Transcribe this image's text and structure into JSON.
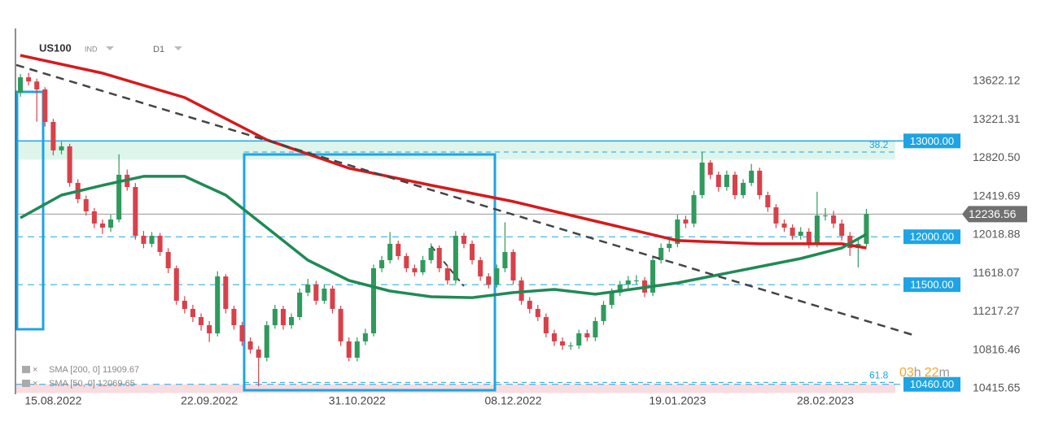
{
  "header": {
    "symbol": "US100",
    "market": "IND",
    "timeframe": "D1"
  },
  "chart_data": {
    "type": "candlestick",
    "open": [
      13500,
      13664,
      13620,
      13537,
      13198,
      12901,
      12943,
      12562,
      12392,
      12265,
      12138,
      12095,
      12180,
      12647,
      12519,
      12010,
      11926,
      12010,
      11841,
      11671,
      11332,
      11247,
      11162,
      11077,
      10992,
      11586,
      11247,
      11077,
      10908,
      10823,
      10738,
      11077,
      11247,
      11077,
      11162,
      11417,
      11501,
      11332,
      11459,
      11247,
      10908,
      10738,
      10908,
      10992,
      11671,
      11756,
      11926,
      11798,
      11671,
      11629,
      11756,
      11883,
      11671,
      11544,
      12010,
      11926,
      11756,
      11586,
      11501,
      11671,
      11841,
      11544,
      11332,
      11247,
      11162,
      10992,
      10908,
      10865,
      10865,
      10992,
      10950,
      11120,
      11289,
      11417,
      11501,
      11544,
      11544,
      11417,
      11756,
      11883,
      11926,
      12180,
      12138,
      12434,
      12774,
      12647,
      12519,
      12647,
      12434,
      12562,
      12689,
      12434,
      12307,
      12138,
      12095,
      12010,
      12053,
      11926,
      12222,
      12222,
      12138,
      12010,
      11883,
      11926
    ],
    "high": [
      13700,
      13710,
      13650,
      13560,
      13230,
      12990,
      12970,
      12600,
      12430,
      12300,
      12180,
      12230,
      12860,
      12700,
      12560,
      12060,
      12050,
      12040,
      11880,
      11700,
      11380,
      11290,
      11200,
      11120,
      11640,
      11610,
      11280,
      11110,
      10950,
      10860,
      11120,
      11290,
      11280,
      11200,
      11460,
      11560,
      11540,
      11500,
      11490,
      11280,
      10950,
      10950,
      11040,
      11710,
      11800,
      12050,
      11960,
      11830,
      11710,
      11800,
      11930,
      11910,
      11700,
      12060,
      12040,
      11960,
      11790,
      11620,
      11710,
      12150,
      11870,
      11580,
      11370,
      11290,
      11200,
      11030,
      10950,
      10900,
      11030,
      11030,
      11160,
      11330,
      11460,
      11540,
      11590,
      11600,
      11580,
      11800,
      11930,
      11970,
      12230,
      12220,
      12480,
      12880,
      12800,
      12680,
      12690,
      12680,
      12600,
      12760,
      12720,
      12470,
      12340,
      12180,
      12130,
      12100,
      12090,
      12470,
      12300,
      12270,
      12180,
      12050,
      11970,
      12290
    ],
    "low": [
      13460,
      13580,
      13200,
      13150,
      12850,
      12860,
      12520,
      12350,
      12220,
      12090,
      12030,
      12050,
      12150,
      12480,
      11970,
      11880,
      11890,
      11800,
      11620,
      11290,
      11200,
      11110,
      11020,
      10900,
      10960,
      11200,
      11030,
      10860,
      10780,
      10440,
      10700,
      11040,
      11030,
      11040,
      11130,
      11380,
      11290,
      11300,
      11200,
      10860,
      10700,
      10700,
      10870,
      10960,
      11630,
      11720,
      11760,
      11630,
      11590,
      11600,
      11720,
      11630,
      11500,
      11510,
      11880,
      11710,
      11540,
      11460,
      11470,
      11630,
      11500,
      11290,
      11200,
      11120,
      10950,
      10860,
      10820,
      10820,
      10830,
      10910,
      10910,
      11080,
      11250,
      11380,
      11460,
      11500,
      11370,
      11380,
      11720,
      11840,
      11890,
      12090,
      12100,
      12400,
      12600,
      12470,
      12480,
      12390,
      12400,
      12530,
      12390,
      12260,
      12090,
      12050,
      11970,
      11970,
      11880,
      11890,
      12170,
      12090,
      11960,
      11800,
      11680,
      11900
    ],
    "close": [
      13664,
      13620,
      13537,
      13198,
      12901,
      12943,
      12562,
      12392,
      12265,
      12138,
      12095,
      12180,
      12647,
      12519,
      12010,
      11926,
      12010,
      11841,
      11671,
      11332,
      11247,
      11162,
      11077,
      10992,
      11586,
      11247,
      11077,
      10908,
      10823,
      10738,
      11077,
      11247,
      11077,
      11162,
      11417,
      11501,
      11332,
      11459,
      11247,
      10908,
      10738,
      10908,
      10992,
      11671,
      11756,
      11926,
      11798,
      11671,
      11629,
      11756,
      11883,
      11671,
      11544,
      12010,
      11926,
      11756,
      11586,
      11501,
      11671,
      11841,
      11544,
      11332,
      11247,
      11162,
      10992,
      10908,
      10865,
      10865,
      10992,
      10950,
      11120,
      11289,
      11417,
      11501,
      11544,
      11544,
      11417,
      11756,
      11883,
      11926,
      12180,
      12138,
      12434,
      12774,
      12647,
      12519,
      12647,
      12434,
      12562,
      12689,
      12434,
      12307,
      12138,
      12095,
      12010,
      12053,
      11926,
      12222,
      12222,
      12138,
      12010,
      11883,
      11926,
      12237
    ],
    "up_color": "#2f9a5c",
    "down_color": "#d8414a",
    "xlim": [
      -0.5,
      109
    ],
    "ylim": [
      10339,
      14131
    ],
    "xticks": [
      {
        "value": 4,
        "label": "15.08.2022"
      },
      {
        "value": 23,
        "label": "22.09.2022"
      },
      {
        "value": 41,
        "label": "31.10.2022"
      },
      {
        "value": 60,
        "label": "08.12.2022"
      },
      {
        "value": 80,
        "label": "19.01.2023"
      },
      {
        "value": 98,
        "label": "28.02.2023"
      }
    ],
    "yticks": [
      13622.12,
      13221.31,
      {
        "value": 12820.5,
        "label": "12820.50"
      },
      12419.69,
      12018.88,
      11618.07,
      11217.27,
      10816.46,
      10415.65
    ],
    "indicators": [
      {
        "name": "SMA [200, 0] 11909.67",
        "color": "#d7191c",
        "x": [
          0,
          10,
          20,
          30,
          40,
          50,
          60,
          70,
          80,
          90,
          100,
          103
        ],
        "values": [
          13893,
          13707,
          13452,
          13011,
          12715,
          12537,
          12367,
          12163,
          11960,
          11926,
          11926,
          11883
        ]
      },
      {
        "name": "SMA [50, 0] 12069.65",
        "color": "#1f8a55",
        "x": [
          0,
          5,
          10,
          15,
          20,
          25,
          30,
          35,
          40,
          45,
          50,
          55,
          60,
          65,
          70,
          75,
          80,
          85,
          90,
          95,
          100,
          103
        ],
        "values": [
          12197,
          12434,
          12537,
          12630,
          12630,
          12434,
          12095,
          11756,
          11544,
          11433,
          11374,
          11365,
          11417,
          11450,
          11400,
          11459,
          11518,
          11603,
          11688,
          11773,
          11883,
          12027
        ]
      }
    ],
    "trendline": {
      "x": [
        -0.5,
        109
      ],
      "values": [
        13792,
        10967
      ],
      "color": "#444444"
    },
    "levels": [
      {
        "value": 13000,
        "label": "13000.00",
        "style": "solid"
      },
      {
        "value": 12000,
        "label": "12000.00",
        "style": "dashed"
      },
      {
        "value": 11500,
        "label": "11500.00",
        "style": "dashed"
      },
      {
        "value": 10460,
        "label": "10460.00",
        "style": "dashed"
      }
    ],
    "level_color": "#1ea4e4",
    "zones": [
      {
        "from": 12805,
        "to": 13000,
        "color": "#d6f2e6"
      },
      {
        "from": 10370,
        "to": 10460,
        "color": "#f8d3d7"
      }
    ],
    "fib_levels": [
      {
        "ratio": 38.2,
        "value": 12884
      },
      {
        "ratio": 61.8,
        "value": 10480
      }
    ],
    "last_price": 12236.56,
    "countdown": [
      "03",
      "h",
      "22",
      "m"
    ]
  }
}
